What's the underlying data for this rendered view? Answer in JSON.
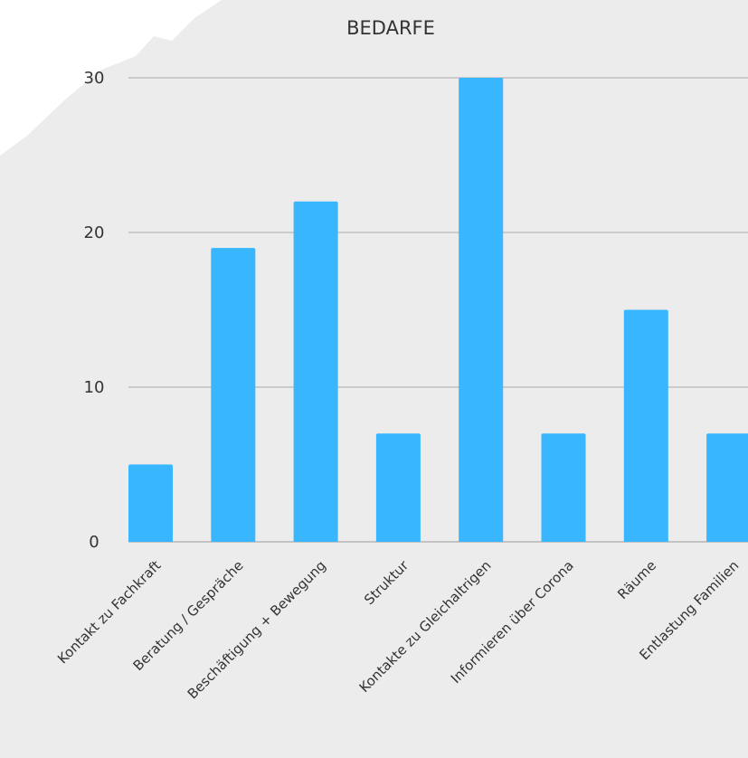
{
  "chart_data": {
    "type": "bar",
    "title": "BEDARFE",
    "xlabel": "",
    "ylabel": "",
    "categories": [
      "Kontakt zu Fachkraft",
      "Beratung / Gespräche",
      "Beschäftigung + Bewegung",
      "Struktur",
      "Kontakte zu Gleichaltrigen",
      "Informieren über Corona",
      "Räume",
      "Entlastung Familien"
    ],
    "values": [
      5,
      19,
      22,
      7,
      30,
      7,
      15,
      7
    ],
    "ylim": [
      0,
      30
    ],
    "yticks": [
      0,
      10,
      20,
      30
    ],
    "grid": true,
    "legend": "none",
    "colors": {
      "bar": "#38b6ff",
      "grid": "#aaaaaa",
      "text": "#333333",
      "background": "#ececec",
      "paper": "#ffffff"
    }
  }
}
